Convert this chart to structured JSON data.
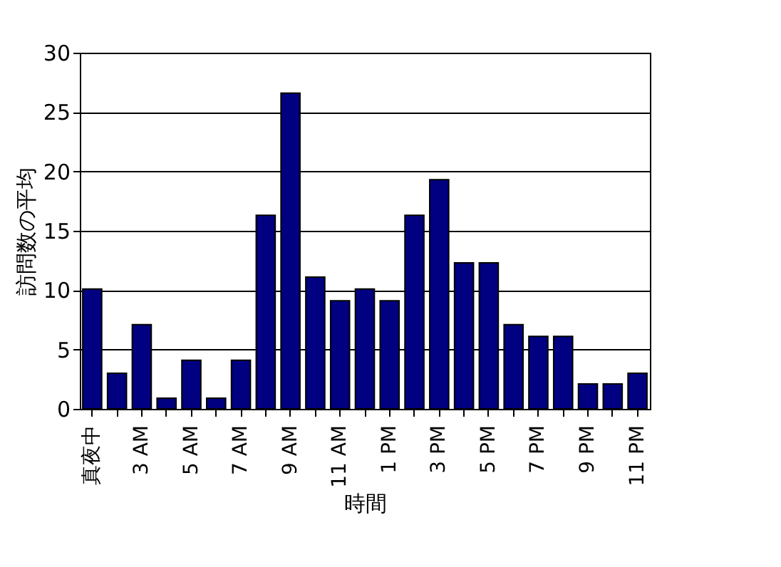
{
  "chart_data": {
    "type": "bar",
    "xlabel": "時間",
    "ylabel": "訪問数の平均",
    "categories": [
      "真夜中",
      null,
      "3 AM",
      null,
      "5 AM",
      null,
      "7 AM",
      null,
      "9 AM",
      null,
      "11 AM",
      null,
      "1 PM",
      null,
      "3 PM",
      null,
      "5 PM",
      null,
      "7 PM",
      null,
      "9 PM",
      null,
      "11 PM"
    ],
    "values": [
      10.1,
      3.0,
      7.1,
      0.9,
      4.1,
      0.9,
      4.1,
      16.3,
      26.6,
      11.1,
      9.1,
      10.1,
      9.1,
      16.3,
      19.3,
      12.3,
      12.3,
      7.1,
      6.1,
      6.1,
      2.1,
      2.1,
      3.0
    ],
    "color": "#000080",
    "ylim": [
      0,
      30
    ],
    "yticks": [
      0,
      5,
      10,
      15,
      20,
      25,
      30
    ],
    "grid": "y"
  }
}
